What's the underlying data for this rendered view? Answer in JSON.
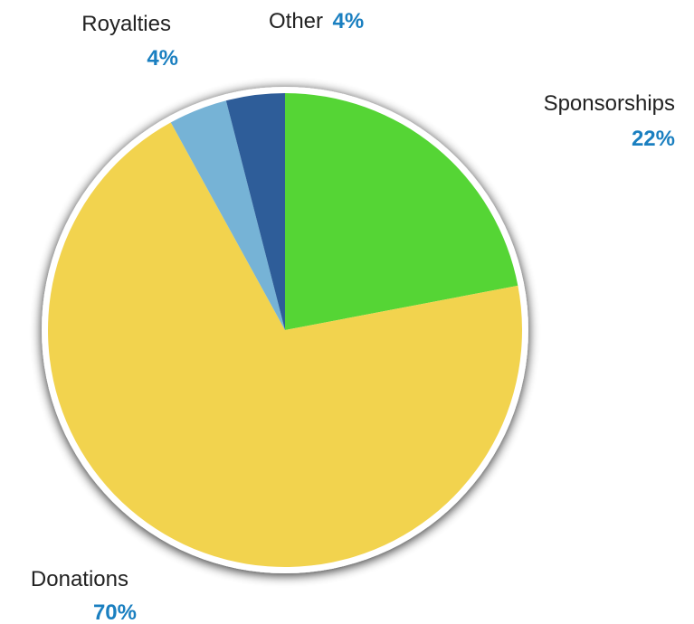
{
  "chart_data": {
    "type": "pie",
    "title": "",
    "slices": [
      {
        "name": "Sponsorships",
        "value": 22,
        "label": "22%",
        "color": "#55d535"
      },
      {
        "name": "Donations",
        "value": 70,
        "label": "70%",
        "color": "#f2d34e"
      },
      {
        "name": "Royalties",
        "value": 4,
        "label": "4%",
        "color": "#76b3d6"
      },
      {
        "name": "Other",
        "value": 4,
        "label": "4%",
        "color": "#2e5d99"
      }
    ],
    "label_color": "#1a7fc0",
    "legend": "none"
  }
}
